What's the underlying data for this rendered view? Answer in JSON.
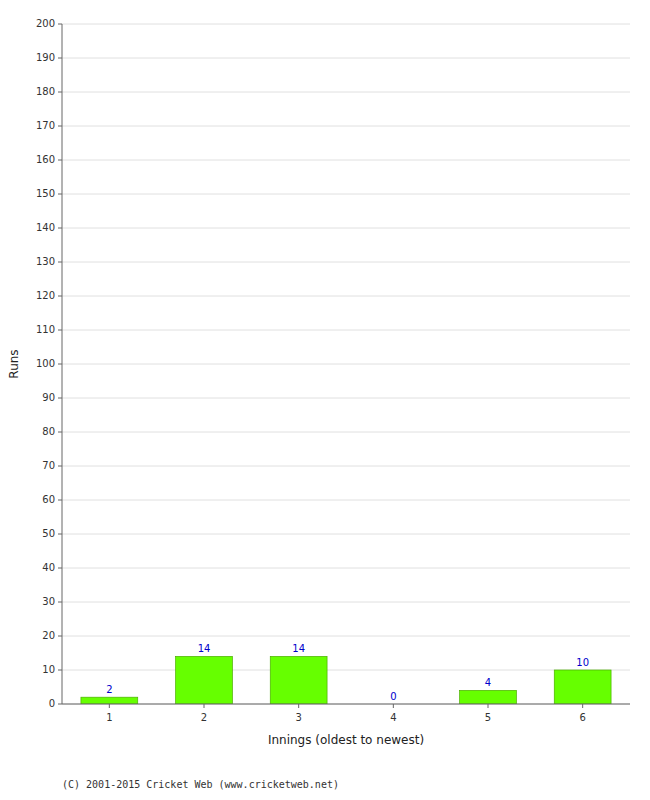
{
  "chart_data": {
    "type": "bar",
    "categories": [
      "1",
      "2",
      "3",
      "4",
      "5",
      "6"
    ],
    "values": [
      2,
      14,
      14,
      0,
      4,
      10
    ],
    "color": "#66ff00",
    "xlabel": "Innings (oldest to newest)",
    "ylabel": "Runs",
    "ylim": [
      0,
      200
    ],
    "yticks": [
      0,
      10,
      20,
      30,
      40,
      50,
      60,
      70,
      80,
      90,
      100,
      110,
      120,
      130,
      140,
      150,
      160,
      170,
      180,
      190,
      200
    ],
    "grid": true,
    "data_labels": true,
    "annotations": [
      "(C) 2001-2015 Cricket Web (www.cricketweb.net)"
    ]
  }
}
